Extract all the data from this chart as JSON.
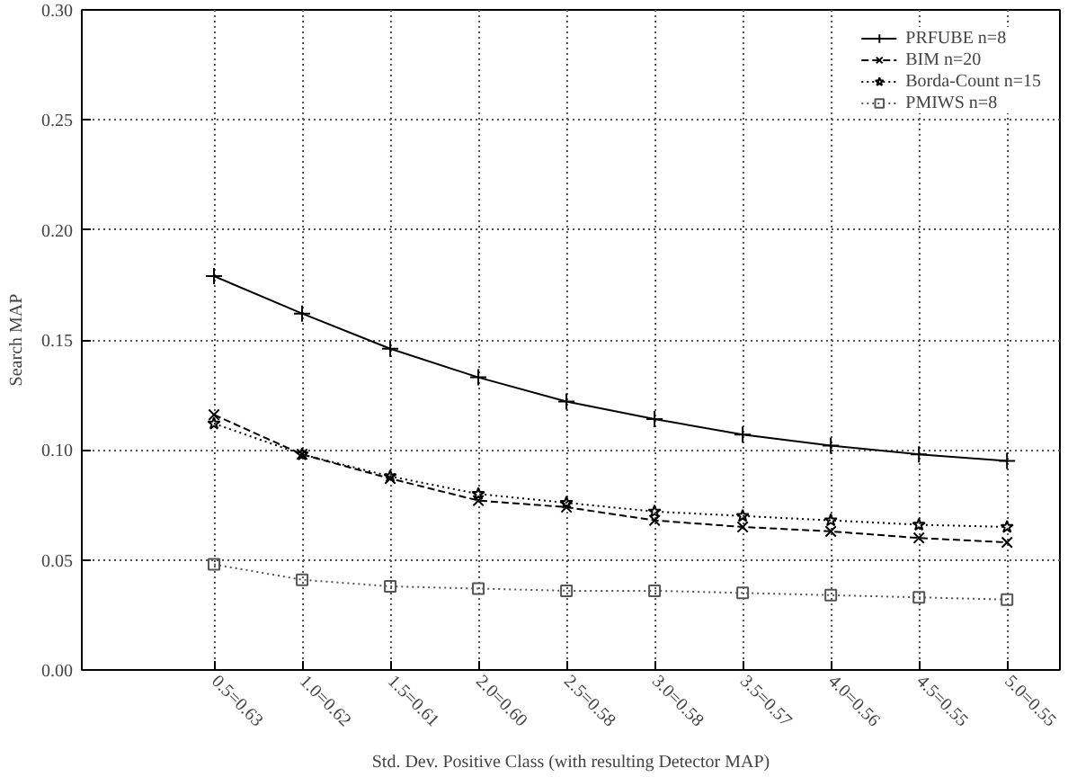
{
  "chart_data": {
    "type": "line",
    "xlabel": "Std. Dev. Positive Class (with resulting Detector MAP)",
    "ylabel": "Search MAP",
    "categories": [
      "0.5=0.63",
      "1.0=0.62",
      "1.5=0.61",
      "2.0=0.60",
      "2.5=0.58",
      "3.0=0.58",
      "3.5=0.57",
      "4.0=0.56",
      "4.5=0.55",
      "5.0=0.55"
    ],
    "series": [
      {
        "name": "PRFUBE n=8",
        "color": "#000000",
        "marker": "cross",
        "line_style": "solid",
        "values": [
          0.179,
          0.162,
          0.146,
          0.133,
          0.122,
          0.114,
          0.107,
          0.102,
          0.098,
          0.095
        ]
      },
      {
        "name": "BIM n=20",
        "color": "#000000",
        "marker": "x",
        "line_style": "dashed",
        "values": [
          0.116,
          0.098,
          0.087,
          0.077,
          0.074,
          0.068,
          0.065,
          0.063,
          0.06,
          0.058
        ]
      },
      {
        "name": "Borda-Count n=15",
        "color": "#000000",
        "marker": "star",
        "line_style": "dotted",
        "values": [
          0.112,
          0.098,
          0.088,
          0.08,
          0.076,
          0.072,
          0.07,
          0.068,
          0.066,
          0.065
        ]
      },
      {
        "name": "PMIWS n=8",
        "color": "#555555",
        "marker": "square",
        "line_style": "dotted",
        "values": [
          0.048,
          0.041,
          0.038,
          0.037,
          0.036,
          0.036,
          0.035,
          0.034,
          0.033,
          0.032
        ]
      }
    ],
    "ylim": [
      0,
      0.3
    ],
    "yticks": [
      {
        "value": 0,
        "label": "0.00"
      },
      {
        "value": 0.05,
        "label": "0.05"
      },
      {
        "value": 0.1,
        "label": "0.10"
      },
      {
        "value": 0.15,
        "label": "0.15"
      },
      {
        "value": 0.2,
        "label": "0.20"
      },
      {
        "value": 0.25,
        "label": "0.25"
      },
      {
        "value": 0.3,
        "label": "0.30"
      }
    ],
    "grid": true,
    "legend": "top right"
  }
}
